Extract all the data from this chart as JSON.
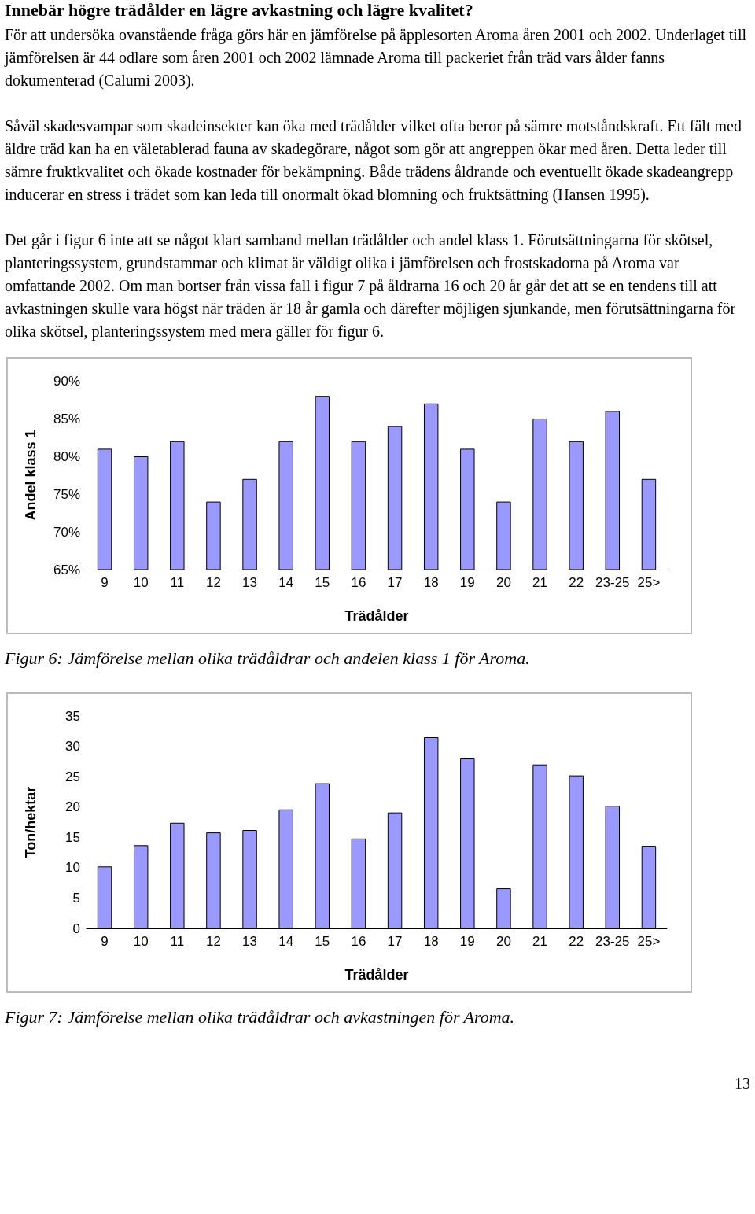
{
  "chart_data": [
    {
      "type": "bar",
      "title": "Innebär högre trädålder en lägre avkastning och lägre kvalitet?",
      "subtitle": "För att undersöka ovanstående fråga görs här en jämförelse på äpplesorten Aroma åren 2001 och 2002. Underlaget till jämförelsen är 44 odlare som åren 2001 och 2002 lämnade Aroma till packeriet från träd vars ålder fanns dokumenterad (Calumi 2003).\n\nSåväl skadesvampar som skadeinsekter kan öka med trädålder vilket ofta beror på sämre motståndskraft. Ett fält med äldre träd kan ha en väletablerad fauna av skadegörare, något som gör att angreppen ökar med åren. Detta leder till sämre fruktkvalitet och ökade kostnader för bekämpning. Både trädens åldrande och eventuellt ökade skadeangrepp inducerar en stress i trädet som kan leda till onormalt ökad blomning och fruktsättning (Hansen 1995).\n\nDet går i figur 6 inte att se något klart samband mellan trädålder och andel klass 1. Förutsättningarna för skötsel, planteringssystem, grundstammar och klimat är väldigt olika i jämförelsen och frostskadorna på Aroma var omfattande 2002. Om man bortser från vissa fall i figur 7 på åldrarna 16 och 20 år går det att se en tendens till att avkastningen skulle vara högst när träden är 18 år gamla och därefter möjligen sjunkande, men förutsättningarna för olika skötsel, planteringssystem med mera gäller för figur 6.",
      "xlabel": "Trädålder",
      "ylabel": "Andel klass 1",
      "categories": [
        "9",
        "10",
        "11",
        "12",
        "13",
        "14",
        "15",
        "16",
        "17",
        "18",
        "19",
        "20",
        "21",
        "22",
        "23-25",
        "25>"
      ],
      "values": [
        81,
        80,
        82,
        74,
        77,
        82,
        88,
        82,
        84,
        87,
        81,
        74,
        85,
        82,
        86,
        77
      ],
      "color": "#9999ff",
      "ylim": [
        65,
        90
      ],
      "yticks": [
        {
          "value": 65,
          "label": "65%"
        },
        {
          "value": 70,
          "label": "70%"
        },
        {
          "value": 75,
          "label": "75%"
        },
        {
          "value": 80,
          "label": "80%"
        },
        {
          "value": 85,
          "label": "85%"
        },
        {
          "value": 90,
          "label": "90%"
        }
      ],
      "grid": false,
      "annotations": [
        "Figur 6: Jämförelse mellan olika trädåldrar och andelen klass 1 för Aroma."
      ]
    },
    {
      "type": "bar",
      "xlabel": "Trädålder",
      "ylabel": "Ton/hektar",
      "categories": [
        "9",
        "10",
        "11",
        "12",
        "13",
        "14",
        "15",
        "16",
        "17",
        "18",
        "19",
        "20",
        "21",
        "22",
        "23-25",
        "25>"
      ],
      "values": [
        10.2,
        13.7,
        17.4,
        15.8,
        16.2,
        19.6,
        23.9,
        14.8,
        19.1,
        31.5,
        28.0,
        6.6,
        27.0,
        25.2,
        20.2,
        13.6
      ],
      "color": "#9999ff",
      "ylim": [
        0,
        35
      ],
      "yticks": [
        0,
        5,
        10,
        15,
        20,
        25,
        30,
        35
      ],
      "grid": false,
      "annotations": [
        "Figur 7: Jämförelse mellan olika trädåldrar och avkastningen för Aroma.",
        "13"
      ]
    }
  ]
}
